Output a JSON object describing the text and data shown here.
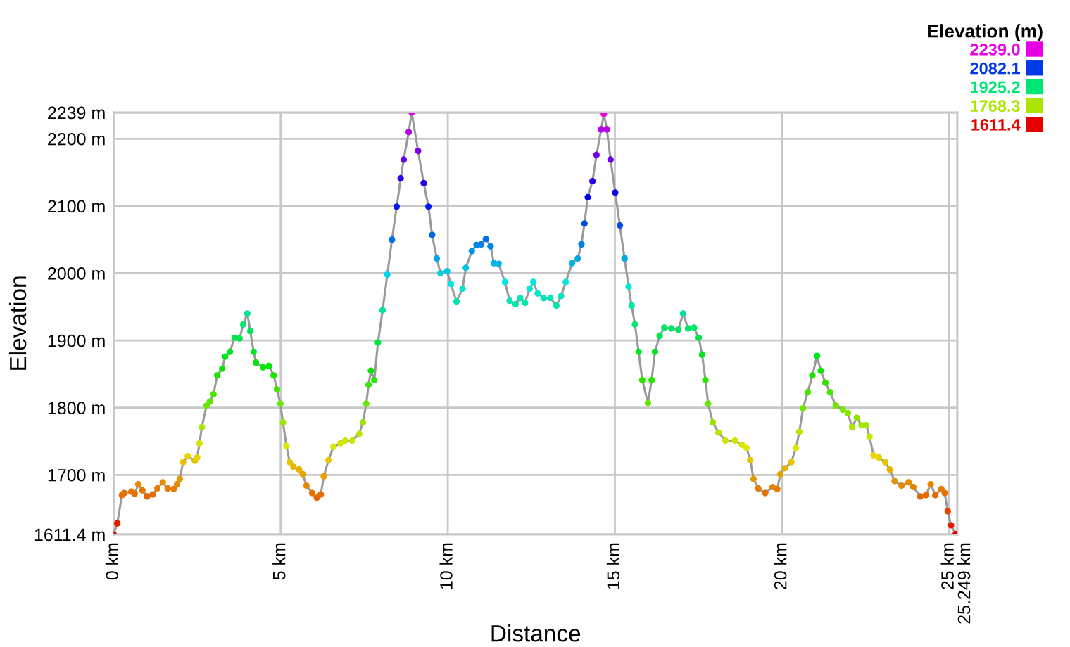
{
  "chart_data": {
    "type": "line",
    "xlabel": "Distance",
    "ylabel": "Elevation",
    "clabel": "Elevation (m)",
    "clim": [
      1611.4,
      2239
    ],
    "cticks": [
      {
        "value": 2239,
        "label": "2239.0"
      },
      2082.1,
      1925.2,
      1768.3,
      1611.4
    ],
    "color": "#9a9a9a",
    "marker": "circle",
    "x": [
      0,
      0.11,
      0.25,
      0.32,
      0.53,
      0.63,
      0.74,
      0.86,
      1.0,
      1.17,
      1.31,
      1.47,
      1.62,
      1.8,
      1.9,
      1.98,
      2.08,
      2.22,
      2.43,
      2.5,
      2.57,
      2.64,
      2.78,
      2.88,
      2.99,
      3.1,
      3.25,
      3.34,
      3.48,
      3.62,
      3.77,
      3.88,
      4.0,
      4.09,
      4.19,
      4.26,
      4.47,
      4.65,
      4.79,
      4.89,
      4.99,
      5.07,
      5.17,
      5.27,
      5.38,
      5.55,
      5.66,
      5.77,
      5.94,
      6.08,
      6.2,
      6.29,
      6.43,
      6.58,
      6.79,
      6.93,
      7.14,
      7.35,
      7.46,
      7.56,
      7.63,
      7.7,
      7.8,
      7.91,
      8.05,
      8.19,
      8.33,
      8.47,
      8.59,
      8.68,
      8.83,
      8.92,
      9.11,
      9.28,
      9.42,
      9.53,
      9.67,
      9.78,
      9.98,
      10.09,
      10.26,
      10.44,
      10.54,
      10.72,
      10.86,
      11.0,
      11.14,
      11.28,
      11.38,
      11.52,
      11.71,
      11.85,
      12.03,
      12.17,
      12.31,
      12.45,
      12.56,
      12.69,
      12.87,
      13.07,
      13.25,
      13.39,
      13.53,
      13.72,
      13.89,
      14.0,
      14.09,
      14.19,
      14.33,
      14.45,
      14.59,
      14.67,
      14.76,
      14.87,
      15.01,
      15.15,
      15.29,
      15.41,
      15.5,
      15.6,
      15.71,
      15.82,
      15.99,
      16.1,
      16.2,
      16.34,
      16.48,
      16.69,
      16.9,
      17.04,
      17.19,
      17.37,
      17.51,
      17.61,
      17.71,
      17.79,
      17.93,
      18.1,
      18.31,
      18.59,
      18.8,
      18.94,
      19.05,
      19.15,
      19.29,
      19.5,
      19.72,
      19.86,
      19.95,
      20.09,
      20.28,
      20.42,
      20.52,
      20.63,
      20.77,
      20.91,
      21.05,
      21.16,
      21.3,
      21.44,
      21.61,
      21.82,
      21.97,
      22.1,
      22.24,
      22.38,
      22.52,
      22.62,
      22.74,
      22.9,
      23.09,
      23.23,
      23.37,
      23.58,
      23.79,
      23.93,
      24.14,
      24.31,
      24.45,
      24.59,
      24.77,
      24.87,
      24.96,
      25.06,
      25.2,
      25.249
    ],
    "values": [
      1611.4,
      1628,
      1670,
      1673,
      1675,
      1672,
      1686,
      1677,
      1668,
      1671,
      1680,
      1689,
      1680,
      1679,
      1686,
      1694,
      1719,
      1728,
      1721,
      1726,
      1747,
      1771,
      1803,
      1809,
      1820,
      1848,
      1858,
      1876,
      1883,
      1904,
      1903,
      1924,
      1940,
      1914,
      1883,
      1867,
      1860,
      1862,
      1848,
      1827,
      1806,
      1778,
      1743,
      1719,
      1712,
      1708,
      1701,
      1684,
      1673,
      1666,
      1671,
      1698,
      1722,
      1742,
      1747,
      1751,
      1751,
      1761,
      1778,
      1806,
      1834,
      1855,
      1841,
      1897,
      1945,
      1998,
      2050,
      2099,
      2141,
      2169,
      2210,
      2239,
      2182,
      2134,
      2099,
      2057,
      2022,
      2000,
      2003,
      1984,
      1958,
      1977,
      2008,
      2033,
      2042,
      2043,
      2051,
      2040,
      2015,
      2014,
      1987,
      1959,
      1954,
      1963,
      1956,
      1977,
      1987,
      1970,
      1963,
      1963,
      1952,
      1966,
      1987,
      2015,
      2022,
      2043,
      2074,
      2113,
      2137,
      2176,
      2214,
      2237,
      2214,
      2169,
      2120,
      2071,
      2022,
      1980,
      1952,
      1924,
      1883,
      1841,
      1807,
      1841,
      1883,
      1907,
      1919,
      1918,
      1916,
      1940,
      1918,
      1919,
      1904,
      1879,
      1841,
      1806,
      1778,
      1763,
      1751,
      1751,
      1745,
      1740,
      1722,
      1694,
      1680,
      1673,
      1682,
      1679,
      1701,
      1710,
      1719,
      1740,
      1764,
      1799,
      1823,
      1848,
      1877,
      1855,
      1837,
      1823,
      1803,
      1797,
      1792,
      1771,
      1785,
      1774,
      1774,
      1757,
      1729,
      1726,
      1719,
      1708,
      1691,
      1684,
      1689,
      1682,
      1668,
      1670,
      1686,
      1670,
      1679,
      1673,
      1646,
      1625,
      1612,
      1611.4
    ],
    "xlim": [
      0,
      25.249
    ],
    "xticks": [
      {
        "value": 0,
        "label": "0 km"
      },
      {
        "value": 5,
        "label": "5 km"
      },
      {
        "value": 10,
        "label": "10 km"
      },
      {
        "value": 15,
        "label": "15 km"
      },
      {
        "value": 20,
        "label": "20 km"
      },
      {
        "value": 25,
        "label": "25 km"
      },
      {
        "value": 25.249,
        "label": "25.249 km"
      }
    ],
    "ylim": [
      1611.4,
      2239
    ],
    "yticks": [
      {
        "value": 1611.4,
        "label": "1611.4 m"
      },
      {
        "value": 1700,
        "label": "1700 m"
      },
      {
        "value": 1800,
        "label": "1800 m"
      },
      {
        "value": 1900,
        "label": "1900 m"
      },
      {
        "value": 2000,
        "label": "2000 m"
      },
      {
        "value": 2100,
        "label": "2100 m"
      },
      {
        "value": 2200,
        "label": "2200 m"
      },
      {
        "value": 2239,
        "label": "2239 m"
      }
    ],
    "grid": true
  }
}
